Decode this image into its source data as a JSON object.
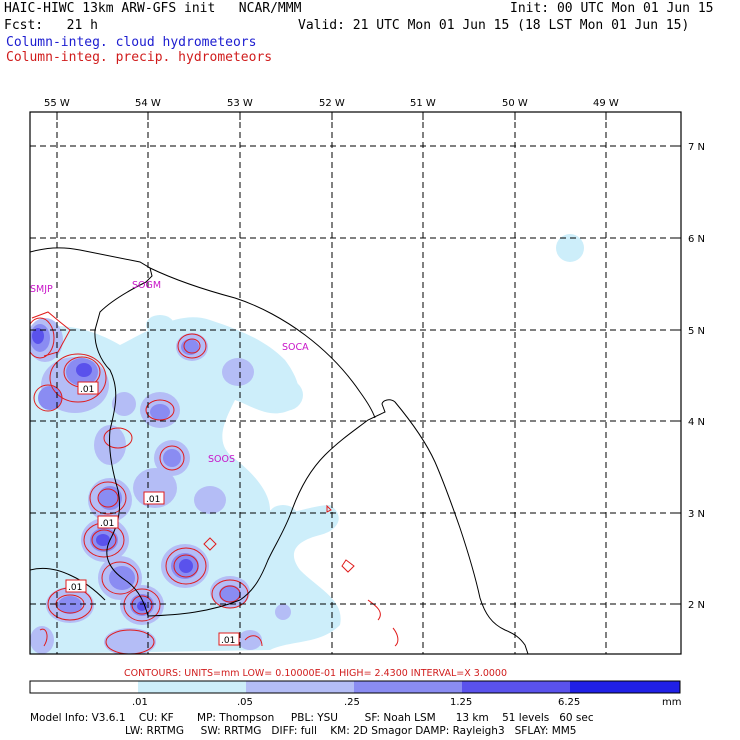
{
  "header": {
    "title_left": "HAIC-HIWC 13km ARW-GFS init   NCAR/MMM",
    "init": "Init: 00 UTC Mon 01 Jun 15",
    "fcst": "Fcst:   21 h",
    "valid": "Valid: 21 UTC Mon 01 Jun 15 (18 LST Mon 01 Jun 15)",
    "field_cloud": "Column-integ. cloud hydrometeors",
    "field_precip": "Column-integ. precip. hydrometeors"
  },
  "map": {
    "lon_labels": [
      "55 W",
      "54 W",
      "53 W",
      "52 W",
      "51 W",
      "50 W",
      "49 W"
    ],
    "lat_labels": [
      "7 N",
      "6 N",
      "5 N",
      "4 N",
      "3 N",
      "2 N"
    ],
    "station_labels": [
      "SMJP",
      "SOGM",
      "SOCA",
      "SOOS"
    ],
    "contour_labels": [
      ".01",
      ".01",
      ".01",
      ".01",
      ".01"
    ]
  },
  "contours_line": "CONTOURS:  UNITS=mm   LOW= 0.10000E-01   HIGH=  2.4300      INTERVAL=X  3.0000",
  "colorbar": {
    "ticks": [
      ".01",
      ".05",
      ".25",
      "1.25",
      "6.25"
    ],
    "unit": "mm",
    "colors": [
      "#ffffff",
      "#cdeefa",
      "#b4bdf6",
      "#8a8cf2",
      "#5a52ec",
      "#2c1ee8",
      "#1414e0"
    ]
  },
  "model_info": {
    "line1": "Model Info: V3.6.1    CU: KF       MP: Thompson     PBL: YSU        SF: Noah LSM      13 km    51 levels   60 sec",
    "line2": "LW: RRTMG     SW: RRTMG   DIFF: full    KM: 2D Smagor DAMP: Rayleigh3   SFLAY: MM5"
  }
}
